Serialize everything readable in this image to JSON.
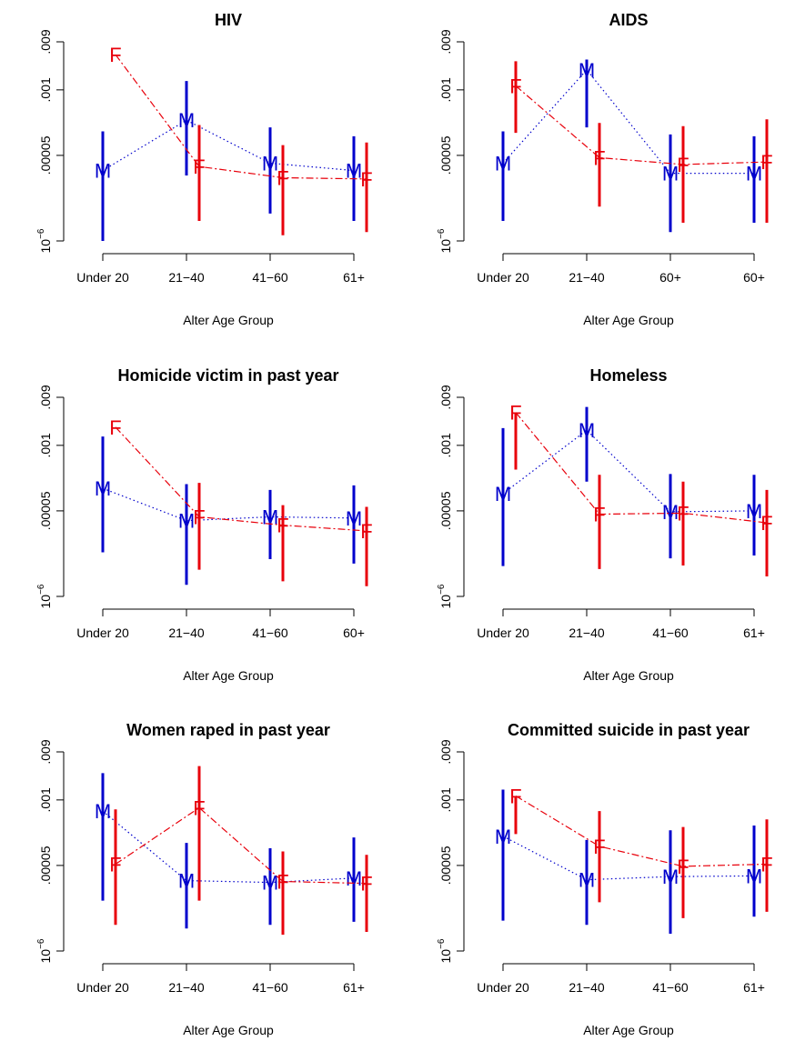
{
  "figure": {
    "xlabel": "Alter Age Group",
    "y_ticks": [
      "10^-6",
      ".00005",
      ".001",
      ".009"
    ],
    "y_tick_values": [
      1e-06,
      5e-05,
      0.001,
      0.009
    ],
    "ylim": [
      1e-06,
      0.009
    ],
    "y_scale": "log",
    "male_marker": "M",
    "female_marker": "F",
    "colors": {
      "male": "#0000CC",
      "female": "#E8000B",
      "axis": "#000000"
    }
  },
  "chart_data": [
    {
      "type": "line",
      "title": "HIV",
      "categories": [
        "Under 20",
        "21−40",
        "41−60",
        "61+"
      ],
      "series": [
        {
          "marker": "M",
          "values": [
            2.5e-05,
            0.00025,
            3.5e-05,
            2.5e-05
          ],
          "lower": [
            1e-06,
            2e-05,
            3.5e-06,
            2.5e-06
          ],
          "upper": [
            0.00015,
            0.0015,
            0.00018,
            0.00012
          ]
        },
        {
          "marker": "F",
          "values": [
            0.005,
            3e-05,
            1.8e-05,
            1.7e-05
          ],
          "lower": [
            0.005,
            2.5e-06,
            1.3e-06,
            1.5e-06
          ],
          "upper": [
            0.005,
            0.0002,
            8e-05,
            9e-05
          ]
        }
      ]
    },
    {
      "type": "line",
      "title": "AIDS",
      "categories": [
        "Under 20",
        "21−40",
        "60+",
        "60+"
      ],
      "series": [
        {
          "marker": "M",
          "values": [
            3.5e-05,
            0.0025,
            2.2e-05,
            2.2e-05
          ],
          "lower": [
            2.5e-06,
            0.00018,
            1.5e-06,
            2.3e-06
          ],
          "upper": [
            0.00015,
            0.004,
            0.00013,
            0.00012
          ]
        },
        {
          "marker": "F",
          "values": [
            0.0012,
            4.5e-05,
            3.3e-05,
            3.7e-05
          ],
          "lower": [
            0.00014,
            4.8e-06,
            2.3e-06,
            2.3e-06
          ],
          "upper": [
            0.0037,
            0.00022,
            0.00019,
            0.00026
          ]
        }
      ]
    },
    {
      "type": "line",
      "title": "Homicide victim in past year",
      "categories": [
        "Under 20",
        "21−40",
        "41−60",
        "60+"
      ],
      "series": [
        {
          "marker": "M",
          "values": [
            0.00014,
            3.2e-05,
            3.8e-05,
            3.6e-05
          ],
          "lower": [
            7.5e-06,
            1.7e-06,
            5.5e-06,
            4.5e-06
          ],
          "upper": [
            0.0015,
            0.00017,
            0.00013,
            0.00016
          ]
        },
        {
          "marker": "F",
          "values": [
            0.0023,
            3.8e-05,
            2.6e-05,
            2e-05
          ],
          "lower": [
            0.0023,
            3.4e-06,
            2e-06,
            1.6e-06
          ],
          "upper": [
            0.0023,
            0.00018,
            6.5e-05,
            6e-05
          ]
        }
      ]
    },
    {
      "type": "line",
      "title": "Homeless",
      "categories": [
        "Under 20",
        "21−40",
        "41−60",
        "61+"
      ],
      "series": [
        {
          "marker": "M",
          "values": [
            0.00011,
            0.002,
            4.8e-05,
            5e-05
          ],
          "lower": [
            4e-06,
            0.00019,
            5.7e-06,
            6.5e-06
          ],
          "upper": [
            0.0022,
            0.0058,
            0.00027,
            0.00026
          ]
        },
        {
          "marker": "F",
          "values": [
            0.0045,
            4.3e-05,
            4.5e-05,
            2.9e-05
          ],
          "lower": [
            0.00033,
            3.5e-06,
            4.1e-06,
            2.5e-06
          ],
          "upper": [
            0.0045,
            0.00026,
            0.00019,
            0.00013
          ]
        }
      ]
    },
    {
      "type": "line",
      "title": "Women raped in past year",
      "categories": [
        "Under 20",
        "21−40",
        "41−60",
        "61+"
      ],
      "series": [
        {
          "marker": "M",
          "values": [
            0.0006,
            2.5e-05,
            2.3e-05,
            2.8e-05
          ],
          "lower": [
            1e-05,
            2.8e-06,
            3.3e-06,
            3.8e-06
          ],
          "upper": [
            0.0034,
            0.00014,
            0.00011,
            0.00018
          ]
        },
        {
          "marker": "F",
          "values": [
            5.3e-05,
            0.0007,
            2.4e-05,
            2.2e-05
          ],
          "lower": [
            3.3e-06,
            1e-05,
            2.1e-06,
            2.4e-06
          ],
          "upper": [
            0.00065,
            0.0047,
            9.5e-05,
            8.1e-05
          ]
        }
      ]
    },
    {
      "type": "line",
      "title": "Committed suicide in past year",
      "categories": [
        "Under 20",
        "21−40",
        "41−60",
        "61+"
      ],
      "series": [
        {
          "marker": "M",
          "values": [
            0.00019,
            2.6e-05,
            3e-05,
            3.1e-05
          ],
          "lower": [
            4e-06,
            3.3e-06,
            2.2e-06,
            4.8e-06
          ],
          "upper": [
            0.0016,
            0.00016,
            0.00025,
            0.00031
          ]
        },
        {
          "marker": "F",
          "values": [
            0.0012,
            0.00012,
            4.8e-05,
            5.3e-05
          ],
          "lower": [
            0.00021,
            9.3e-06,
            4.5e-06,
            6e-06
          ],
          "upper": [
            0.0012,
            0.0006,
            0.00029,
            0.00041
          ]
        }
      ]
    }
  ]
}
